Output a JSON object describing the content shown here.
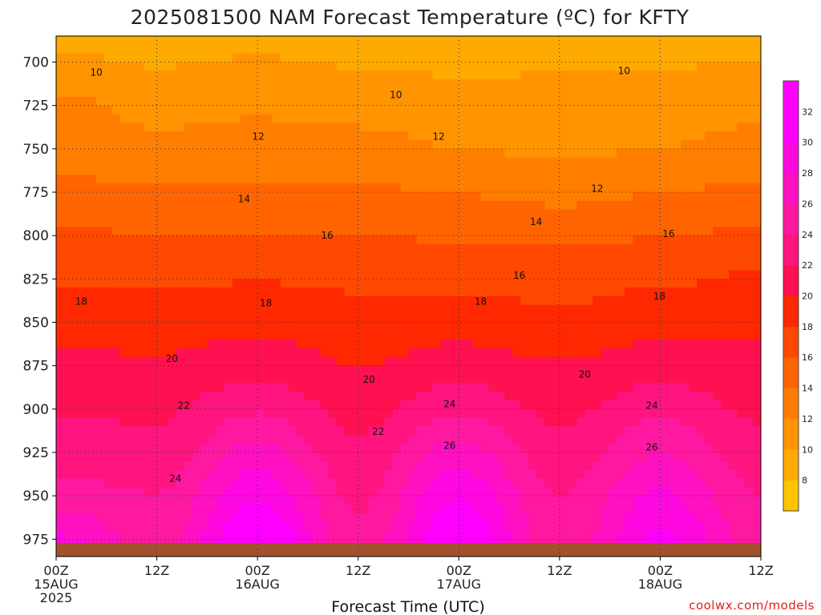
{
  "chart_data": {
    "type": "heatmap",
    "title": "2025081500 NAM Forecast Temperature (ºC) for KFTY",
    "xlabel": "Forecast Time (UTC)",
    "ylabel": "",
    "x_ticks": [
      {
        "line1": "00Z",
        "line2": "15AUG",
        "line3": "2025",
        "hour": 0
      },
      {
        "line1": "12Z",
        "line2": "",
        "line3": "",
        "hour": 12
      },
      {
        "line1": "00Z",
        "line2": "16AUG",
        "line3": "",
        "hour": 24
      },
      {
        "line1": "12Z",
        "line2": "",
        "line3": "",
        "hour": 36
      },
      {
        "line1": "00Z",
        "line2": "17AUG",
        "line3": "",
        "hour": 48
      },
      {
        "line1": "12Z",
        "line2": "",
        "line3": "",
        "hour": 60
      },
      {
        "line1": "00Z",
        "line2": "18AUG",
        "line3": "",
        "hour": 72
      },
      {
        "line1": "12Z",
        "line2": "",
        "line3": "",
        "hour": 84
      }
    ],
    "y_ticks": [
      700,
      725,
      750,
      775,
      800,
      825,
      850,
      875,
      900,
      925,
      950,
      975
    ],
    "xlim_hours": [
      0,
      84
    ],
    "ylim_hpa": [
      985,
      685
    ],
    "grid": true,
    "colorbar": {
      "levels": [
        8,
        10,
        12,
        14,
        16,
        18,
        20,
        22,
        24,
        26,
        28,
        30,
        32
      ],
      "colors": [
        "#ffc400",
        "#ffaa00",
        "#ff9400",
        "#ff7e00",
        "#ff6400",
        "#ff4800",
        "#ff2800",
        "#ff1050",
        "#ff1480",
        "#ff18a0",
        "#ff10c0",
        "#ff08e0",
        "#ff00ff",
        "#ff00ff"
      ]
    },
    "temperature_profiles": [
      {
        "hour": 0,
        "levels": [
          700,
          725,
          750,
          775,
          800,
          825,
          850,
          875,
          900,
          925,
          950,
          975
        ],
        "temps": [
          10.5,
          12.5,
          13.2,
          14.5,
          16.3,
          17.8,
          19.2,
          20.6,
          21.8,
          23.1,
          24.8,
          28.4
        ]
      },
      {
        "hour": 12,
        "levels": [
          700,
          725,
          750,
          775,
          800,
          825,
          850,
          875,
          900,
          925,
          950,
          975
        ],
        "temps": [
          9.8,
          11.5,
          12.4,
          14.4,
          16.1,
          17.6,
          19.0,
          20.3,
          21.6,
          22.7,
          24.1,
          25.0
        ]
      },
      {
        "hour": 24,
        "levels": [
          700,
          725,
          750,
          775,
          800,
          825,
          850,
          875,
          900,
          925,
          950,
          975
        ],
        "temps": [
          10.2,
          11.6,
          13.0,
          14.3,
          16.0,
          17.9,
          19.4,
          21.2,
          23.7,
          26.8,
          29.7,
          32.4
        ]
      },
      {
        "hour": 36,
        "levels": [
          700,
          725,
          750,
          775,
          800,
          825,
          850,
          875,
          900,
          925,
          950,
          975
        ],
        "temps": [
          9.8,
          11.4,
          12.6,
          14.4,
          16.1,
          17.6,
          18.9,
          20.0,
          21.3,
          22.5,
          23.6,
          24.6
        ]
      },
      {
        "hour": 48,
        "levels": [
          700,
          725,
          750,
          775,
          800,
          825,
          850,
          875,
          900,
          925,
          950,
          975
        ],
        "temps": [
          9.5,
          11.0,
          12.0,
          13.9,
          15.7,
          17.4,
          19.2,
          20.9,
          23.6,
          26.8,
          29.8,
          32.0
        ]
      },
      {
        "hour": 60,
        "levels": [
          700,
          725,
          750,
          775,
          800,
          825,
          850,
          875,
          900,
          925,
          950,
          975
        ],
        "temps": [
          9.6,
          11.0,
          11.6,
          13.3,
          15.5,
          17.2,
          18.5,
          20.2,
          21.5,
          22.8,
          24.0,
          24.5
        ]
      },
      {
        "hour": 72,
        "levels": [
          700,
          725,
          750,
          775,
          800,
          825,
          850,
          875,
          900,
          925,
          950,
          975
        ],
        "temps": [
          9.8,
          11.3,
          12.0,
          13.9,
          15.9,
          17.7,
          19.3,
          21.0,
          23.4,
          25.9,
          28.4,
          30.4
        ]
      },
      {
        "hour": 84,
        "levels": [
          700,
          725,
          750,
          775,
          800,
          825,
          850,
          875,
          900,
          925,
          950,
          975
        ],
        "temps": [
          10.0,
          11.5,
          12.6,
          14.6,
          16.5,
          18.3,
          19.5,
          20.5,
          21.6,
          22.8,
          24.0,
          25.0
        ]
      }
    ],
    "contour_labels": [
      {
        "text": "10",
        "hour": 4.8,
        "hpa": 706
      },
      {
        "text": "10",
        "hour": 40.5,
        "hpa": 719
      },
      {
        "text": "10",
        "hour": 67.7,
        "hpa": 705
      },
      {
        "text": "12",
        "hour": 24.1,
        "hpa": 743
      },
      {
        "text": "12",
        "hour": 45.6,
        "hpa": 743
      },
      {
        "text": "12",
        "hour": 64.5,
        "hpa": 773
      },
      {
        "text": "14",
        "hour": 22.4,
        "hpa": 779
      },
      {
        "text": "14",
        "hour": 57.2,
        "hpa": 792
      },
      {
        "text": "16",
        "hour": 32.3,
        "hpa": 800
      },
      {
        "text": "16",
        "hour": 55.2,
        "hpa": 823
      },
      {
        "text": "16",
        "hour": 73.0,
        "hpa": 799
      },
      {
        "text": "18",
        "hour": 3.0,
        "hpa": 838
      },
      {
        "text": "18",
        "hour": 25.0,
        "hpa": 839
      },
      {
        "text": "18",
        "hour": 50.6,
        "hpa": 838
      },
      {
        "text": "18",
        "hour": 71.9,
        "hpa": 835
      },
      {
        "text": "20",
        "hour": 13.8,
        "hpa": 871
      },
      {
        "text": "20",
        "hour": 37.3,
        "hpa": 883
      },
      {
        "text": "20",
        "hour": 63.0,
        "hpa": 880
      },
      {
        "text": "22",
        "hour": 15.2,
        "hpa": 898
      },
      {
        "text": "22",
        "hour": 38.4,
        "hpa": 913
      },
      {
        "text": "24",
        "hour": 14.2,
        "hpa": 940
      },
      {
        "text": "24",
        "hour": 46.9,
        "hpa": 897
      },
      {
        "text": "24",
        "hour": 71.0,
        "hpa": 898
      },
      {
        "text": "26",
        "hour": 46.9,
        "hpa": 921
      },
      {
        "text": "26",
        "hour": 71.0,
        "hpa": 922
      }
    ],
    "terrain_color": "#a0522d"
  },
  "credit": "coolwx.com/models"
}
